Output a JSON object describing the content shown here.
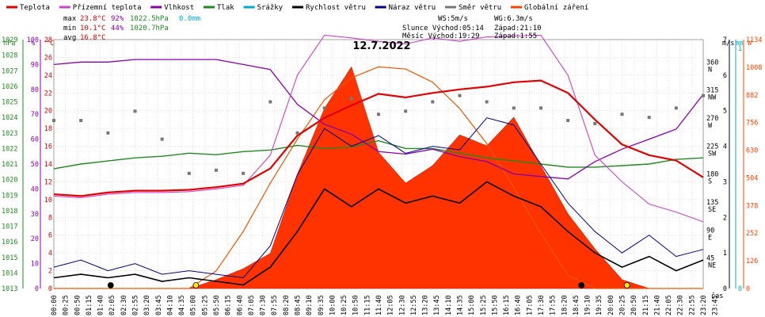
{
  "chart_data": {
    "type": "line",
    "title": "12.7.2022",
    "legend": [
      {
        "name": "Teplota",
        "color": "#e00000"
      },
      {
        "name": "Přízemní teplota",
        "color": "#cc44cc"
      },
      {
        "name": "Vlhkost",
        "color": "#8800aa"
      },
      {
        "name": "Tlak",
        "color": "#228822"
      },
      {
        "name": "Srážky",
        "color": "#00aacc"
      },
      {
        "name": "Rychlost větru",
        "color": "#000000"
      },
      {
        "name": "Náraz větru",
        "color": "#00008b"
      },
      {
        "name": "Směr větru",
        "color": "#777777"
      },
      {
        "name": "Globální záření",
        "color": "#ff4400"
      }
    ],
    "stats": {
      "max_label": "max",
      "max_temp": "23.8°C",
      "max_hum": "92%",
      "max_press": "1022.5hPa",
      "max_rain": "0.0mm",
      "min_label": "min",
      "min_temp": "10.1°C",
      "min_hum": "44%",
      "min_press": "1020.7hPa",
      "avg_label": "avg",
      "avg_temp": "16.8°C"
    },
    "wind_info": {
      "ws": "WS:5m/s",
      "wg": "WG:6.3m/s"
    },
    "sun": {
      "sunrise": "Slunce Východ:05:14",
      "sunset": "Západ:21:10",
      "moonrise": "Měsíc Východ:19:29",
      "moonset": "Západ:1:55"
    },
    "axis_units": {
      "hpa": "hPa",
      "pct": "%",
      "degc": "°C",
      "ms": "m/s",
      "mm": "mm",
      "wm": "W",
      "time": "čas"
    },
    "left_axes": {
      "hpa": [
        "1029",
        "1028",
        "1027",
        "1026",
        "1025",
        "1024",
        "1023",
        "1022",
        "1021",
        "1020",
        "1019",
        "1018",
        "1017",
        "1016",
        "1015",
        "1014",
        "1013"
      ],
      "pct": [
        "100",
        "90",
        "80",
        "70",
        "60",
        "50",
        "40",
        "30",
        "20",
        "10",
        "0"
      ],
      "degc": [
        "28",
        "26",
        "24",
        "22",
        "20",
        "18",
        "16",
        "14",
        "12",
        "10",
        "8",
        "6",
        "4",
        "2",
        "0"
      ]
    },
    "right_axes": {
      "dir": [
        "360 N",
        "315 NW",
        "270 W",
        "225 SW",
        "180 S",
        "135 SE",
        "90 E",
        "45 NE"
      ],
      "ms": [
        "7",
        "6",
        "5",
        "4",
        "3",
        "2",
        "1",
        "0"
      ],
      "mm": [
        "1",
        "0"
      ],
      "wm": [
        "1134",
        "1008",
        "882",
        "756",
        "630",
        "504",
        "378",
        "252",
        "126",
        "0"
      ]
    },
    "x_ticks": [
      "00:00",
      "00:25",
      "00:50",
      "01:15",
      "01:40",
      "02:05",
      "02:30",
      "02:55",
      "03:20",
      "03:45",
      "04:10",
      "04:35",
      "05:00",
      "05:25",
      "05:50",
      "06:15",
      "06:40",
      "07:05",
      "07:30",
      "07:55",
      "08:20",
      "08:45",
      "09:10",
      "09:35",
      "10:00",
      "10:25",
      "10:50",
      "11:15",
      "11:40",
      "12:05",
      "12:30",
      "12:55",
      "13:20",
      "13:45",
      "14:10",
      "14:35",
      "15:00",
      "15:25",
      "15:50",
      "16:15",
      "16:40",
      "17:05",
      "17:30",
      "17:55",
      "18:20",
      "18:45",
      "19:10",
      "19:35",
      "20:00",
      "20:25",
      "20:50",
      "21:15",
      "21:40",
      "22:05",
      "22:30",
      "22:55",
      "23:20",
      "23:45"
    ],
    "x_hours": [
      0,
      1,
      2,
      3,
      4,
      5,
      6,
      7,
      8,
      9,
      10,
      11,
      12,
      13,
      14,
      15,
      16,
      17,
      18,
      19,
      20,
      21,
      22,
      23,
      24
    ],
    "temperature": [
      10.6,
      10.4,
      10.8,
      11.0,
      11.0,
      11.1,
      11.4,
      11.8,
      13.5,
      17.2,
      19.2,
      20.6,
      21.9,
      21.5,
      22.0,
      22.4,
      22.7,
      23.2,
      23.4,
      22.0,
      19.0,
      16.2,
      15.0,
      14.4,
      12.5
    ],
    "ground_temperature": [
      10.4,
      10.2,
      10.6,
      10.8,
      10.8,
      10.9,
      11.2,
      11.6,
      15.0,
      24.0,
      28.5,
      28.2,
      27.8,
      27.5,
      28.2,
      27.8,
      28.3,
      28.4,
      28.5,
      24.0,
      15.0,
      12.0,
      9.5,
      8.6,
      7.5
    ],
    "humidity": [
      90,
      91,
      91,
      92,
      92,
      92,
      92,
      90,
      88,
      74,
      66,
      62,
      55,
      54,
      56,
      53,
      51,
      46,
      45,
      44,
      51,
      56,
      60,
      64,
      78
    ],
    "pressure": [
      1020.7,
      1021.0,
      1021.2,
      1021.4,
      1021.5,
      1021.7,
      1021.6,
      1021.8,
      1021.9,
      1022.2,
      1022.0,
      1022.1,
      1022.5,
      1022.0,
      1022.0,
      1021.7,
      1021.4,
      1021.2,
      1021.0,
      1020.8,
      1020.8,
      1020.9,
      1021.0,
      1021.3,
      1021.4
    ],
    "wind_speed": [
      0.3,
      0.4,
      0.3,
      0.4,
      0.2,
      0.3,
      0.2,
      0.1,
      0.6,
      1.6,
      2.8,
      2.3,
      2.8,
      2.4,
      2.6,
      2.4,
      3.0,
      2.6,
      2.3,
      1.6,
      1.0,
      0.6,
      0.9,
      0.5,
      0.8
    ],
    "wind_gust": [
      0.6,
      0.8,
      0.5,
      0.7,
      0.4,
      0.5,
      0.4,
      0.3,
      1.2,
      3.2,
      4.5,
      4.0,
      4.3,
      3.8,
      4.0,
      3.9,
      4.8,
      4.6,
      3.5,
      2.4,
      1.6,
      1.0,
      1.5,
      0.9,
      1.1
    ],
    "wind_direction": [
      270,
      270,
      250,
      285,
      240,
      185,
      190,
      185,
      300,
      250,
      290,
      305,
      280,
      285,
      300,
      310,
      300,
      290,
      290,
      270,
      265,
      280,
      275,
      290,
      310
    ],
    "solar_radiation": [
      0,
      0,
      0,
      0,
      0,
      0,
      40,
      90,
      160,
      520,
      820,
      1010,
      620,
      480,
      560,
      700,
      650,
      780,
      560,
      340,
      180,
      40,
      0,
      0,
      0
    ],
    "solar_clear_sky": [
      0,
      0,
      0,
      0,
      0,
      0,
      80,
      260,
      480,
      680,
      860,
      960,
      1010,
      1000,
      940,
      820,
      660,
      460,
      250,
      60,
      0,
      0,
      0,
      0,
      0
    ],
    "rain_mm": [
      0,
      0,
      0,
      0,
      0,
      0,
      0,
      0,
      0,
      0,
      0,
      0,
      0,
      0,
      0,
      0,
      0,
      0,
      0,
      0,
      0,
      0,
      0,
      0,
      0
    ],
    "markers": [
      {
        "hour": 2.1,
        "color": "#000000"
      },
      {
        "hour": 5.25,
        "color": "#ffee00"
      },
      {
        "hour": 19.5,
        "color": "#000000"
      },
      {
        "hour": 21.18,
        "color": "#ffee00"
      }
    ],
    "ranges": {
      "degc": [
        0,
        28
      ],
      "pct": [
        0,
        100
      ],
      "hpa": [
        1013,
        1029
      ],
      "ms": [
        0,
        7
      ],
      "wm": [
        0,
        1134
      ],
      "dir": [
        0,
        400
      ]
    }
  }
}
